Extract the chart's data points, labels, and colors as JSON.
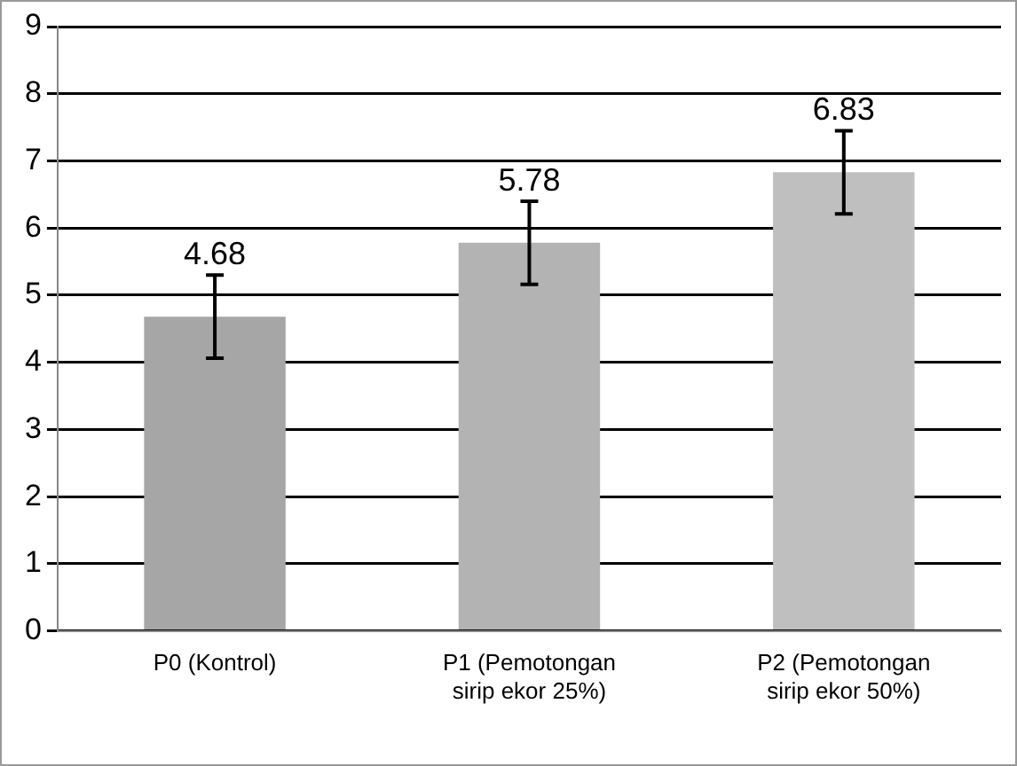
{
  "chart_data": {
    "type": "bar",
    "categories": [
      "P0 (Kontrol)",
      "P1 (Pemotongan sirip ekor 25%)",
      "P2 (Pemotongan sirip ekor 50%)"
    ],
    "values": [
      4.68,
      5.78,
      6.83
    ],
    "colors": [
      "#a6a6a6",
      "#b3b3b3",
      "#bfbfbf"
    ],
    "errors": [
      0.62,
      0.62,
      0.62
    ],
    "ylim": [
      0,
      9
    ],
    "yticks": [
      0,
      1,
      2,
      3,
      4,
      5,
      6,
      7,
      8,
      9
    ],
    "grid": "y",
    "legend": false,
    "data_labels": true
  }
}
